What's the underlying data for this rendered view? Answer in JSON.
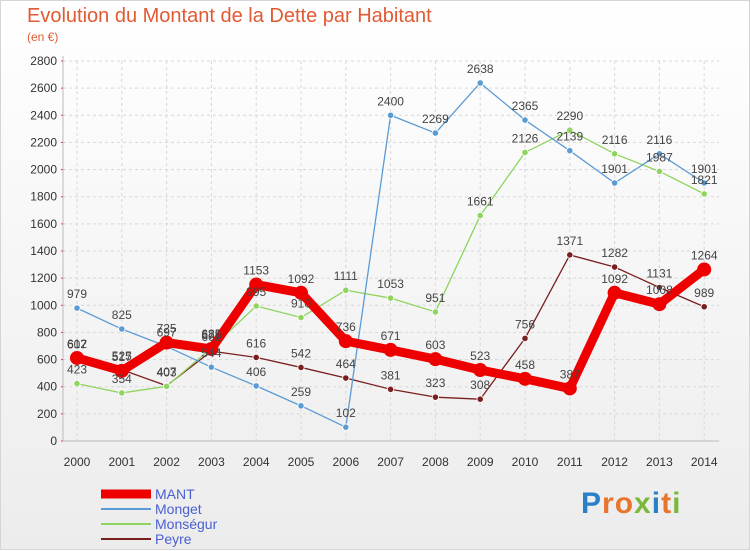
{
  "title": "Evolution du Montant de la Dette par Habitant",
  "subtitle": "(en €)",
  "logo": {
    "text": "Proxiti",
    "colors": [
      "#2a7fc9",
      "#e8742e",
      "#e8742e",
      "#79b83a",
      "#2a7fc9",
      "#e8742e",
      "#79b83a"
    ]
  },
  "chart_data": {
    "type": "line",
    "x": [
      2000,
      2001,
      2002,
      2003,
      2004,
      2005,
      2006,
      2007,
      2008,
      2009,
      2010,
      2011,
      2012,
      2013,
      2014
    ],
    "ylim": [
      0,
      2800
    ],
    "yticks": [
      0,
      200,
      400,
      600,
      800,
      1000,
      1200,
      1400,
      1600,
      1800,
      2000,
      2200,
      2400,
      2600,
      2800
    ],
    "grid": true,
    "legend_position": "bottom-left",
    "series": [
      {
        "name": "MANT",
        "color": "#ee0000",
        "values": [
          612,
          517,
          725,
          678,
          1153,
          1092,
          736,
          671,
          603,
          523,
          458,
          387,
          1092,
          1008,
          1264
        ]
      },
      {
        "name": "Monget",
        "color": "#5b9bd5",
        "values": [
          979,
          825,
          697,
          544,
          406,
          259,
          102,
          2400,
          2269,
          2638,
          2365,
          2139,
          1901,
          2116,
          1901
        ]
      },
      {
        "name": "Monségur",
        "color": "#8fd45f",
        "values": [
          423,
          354,
          403,
          685,
          995,
          910,
          1111,
          1053,
          951,
          1661,
          2126,
          2290,
          2116,
          1987,
          1821
        ]
      },
      {
        "name": "Peyre",
        "color": "#7a1f1f",
        "values": [
          607,
          525,
          407,
          662,
          616,
          542,
          464,
          381,
          323,
          308,
          756,
          1371,
          1282,
          1131,
          989
        ]
      }
    ]
  }
}
